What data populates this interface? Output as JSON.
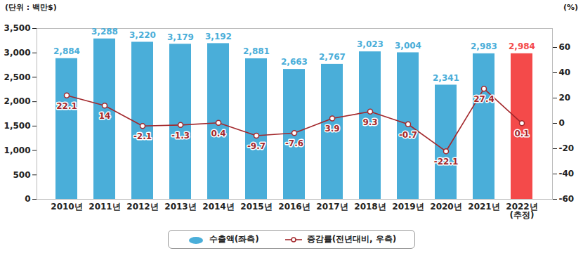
{
  "chart_data": {
    "type": "bar",
    "ylabel": "(단위 : 백만$)",
    "y2label": "(%)",
    "categories": [
      "2010년",
      "2011년",
      "2012년",
      "2013년",
      "2014년",
      "2015년",
      "2016년",
      "2017년",
      "2018년",
      "2019년",
      "2020년",
      "2021년",
      "2022년\n(추정)"
    ],
    "series": [
      {
        "name": "수출액(좌측)",
        "type": "bar",
        "color": "#4aaed9",
        "colors": [
          "#4aaed9",
          "#4aaed9",
          "#4aaed9",
          "#4aaed9",
          "#4aaed9",
          "#4aaed9",
          "#4aaed9",
          "#4aaed9",
          "#4aaed9",
          "#4aaed9",
          "#4aaed9",
          "#4aaed9",
          "#f44a4a"
        ],
        "values": [
          2884,
          3288,
          3220,
          3179,
          3192,
          2881,
          2663,
          2767,
          3023,
          3004,
          2341,
          2983,
          2984
        ],
        "value_labels": [
          "2,884",
          "3,288",
          "3,220",
          "3,179",
          "3,192",
          "2,881",
          "2,663",
          "2,767",
          "3,023",
          "3,004",
          "2,341",
          "2,983",
          "2,984"
        ]
      },
      {
        "name": "증감률(전년대비, 우측)",
        "type": "line",
        "axis": "y2",
        "color": "#a3282c",
        "marker": "circle",
        "values": [
          22.1,
          14.0,
          -2.1,
          -1.3,
          0.4,
          -9.7,
          -7.6,
          3.9,
          9.3,
          -0.7,
          -22.1,
          27.4,
          0.1
        ]
      }
    ],
    "ylim": [
      0,
      3500
    ],
    "yticks": [
      0,
      500,
      {
        "value": 1000,
        "label": "1,000"
      },
      {
        "value": 1500,
        "label": "1,500"
      },
      {
        "value": 2000,
        "label": "2,000"
      },
      {
        "value": 2500,
        "label": "2,500"
      },
      {
        "value": 3000,
        "label": "3,000"
      },
      {
        "value": 3500,
        "label": "3,500"
      }
    ],
    "y2lim": [
      -60,
      75
    ],
    "y2ticks": [
      -60,
      -40,
      -20,
      0,
      20,
      40,
      60
    ],
    "grid": false,
    "legend": "bottom",
    "data_labels": true
  }
}
